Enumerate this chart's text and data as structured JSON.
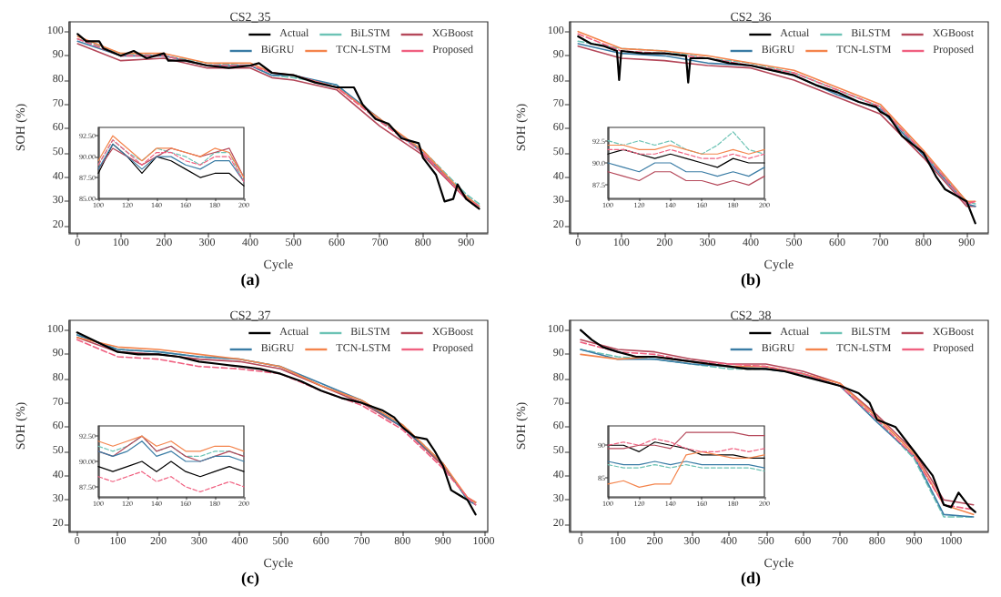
{
  "chart_data": [
    {
      "type": "line",
      "title": "CS2_35",
      "xlabel": "Cycle",
      "ylabel": "SOH (%)",
      "annotations": [
        "(a)"
      ],
      "legend": "top right",
      "xlim": [
        -20,
        950
      ],
      "xticks": [
        0,
        100,
        200,
        300,
        400,
        500,
        600,
        700,
        800,
        900
      ],
      "ylim": [
        17,
        104
      ],
      "yticks": [
        20,
        30,
        40,
        50,
        60,
        70,
        80,
        90,
        100
      ],
      "x": [
        0,
        100,
        200,
        300,
        400,
        450,
        500,
        600,
        700,
        800,
        900,
        930
      ],
      "series": [
        {
          "name": "Actual",
          "color": "#000000",
          "x": [
            0,
            20,
            50,
            60,
            100,
            130,
            160,
            200,
            210,
            250,
            300,
            350,
            400,
            420,
            450,
            500,
            550,
            600,
            640,
            660,
            690,
            720,
            750,
            790,
            800,
            830,
            850,
            870,
            880,
            900,
            930
          ],
          "values": [
            99,
            96,
            96,
            93,
            90,
            92,
            89,
            91,
            88,
            88,
            86,
            85,
            86,
            87,
            83,
            82,
            79,
            77,
            77,
            70,
            64,
            62,
            56,
            54,
            48,
            41,
            30,
            31,
            37,
            31,
            27
          ]
        },
        {
          "name": "BiLSTM",
          "color": "#6cc3b5",
          "line_style": "dashed",
          "values": [
            97,
            91,
            90,
            87,
            86,
            82,
            81,
            78,
            63,
            51,
            33,
            29
          ]
        },
        {
          "name": "XGBoost",
          "color": "#b5485a",
          "values": [
            95,
            88,
            89,
            85,
            85,
            81,
            80,
            76,
            61,
            49,
            31,
            27
          ]
        },
        {
          "name": "BiGRU",
          "color": "#3a7ca5",
          "values": [
            96,
            90,
            90,
            86,
            86,
            82,
            82,
            78,
            64,
            50,
            32,
            28
          ]
        },
        {
          "name": "TCN-LSTM",
          "color": "#f4844c",
          "values": [
            98,
            91,
            91,
            87,
            87,
            83,
            82,
            77,
            64,
            51,
            32,
            28
          ]
        },
        {
          "name": "Proposed",
          "color": "#f06080",
          "line_style": "dashed",
          "values": [
            97,
            90,
            90,
            86,
            86,
            83,
            82,
            77,
            63,
            50,
            31,
            28
          ]
        }
      ]
    },
    {
      "type": "line",
      "xlim": [
        100,
        200
      ],
      "xticks": [
        100,
        120,
        140,
        160,
        180,
        200
      ],
      "ylim": [
        85,
        93.5
      ],
      "yticks": [
        {
          "value": 85,
          "label": "85.00"
        },
        {
          "value": 87.5,
          "label": "87.50"
        },
        {
          "value": 90,
          "label": "90.00"
        },
        {
          "value": 92.5,
          "label": "92.50"
        }
      ],
      "x": [
        100,
        110,
        120,
        130,
        140,
        150,
        160,
        170,
        180,
        190,
        200
      ],
      "series": [
        {
          "color": "#000000",
          "values": [
            88,
            91.5,
            90,
            88,
            90,
            89.5,
            88.5,
            87.5,
            88,
            88,
            86.5
          ]
        },
        {
          "color": "#6cc3b5",
          "line_style": "dashed",
          "values": [
            89,
            92,
            90.5,
            89.5,
            91,
            90.5,
            90,
            89,
            90.5,
            90.5,
            87
          ]
        },
        {
          "color": "#b5485a",
          "values": [
            88.5,
            91,
            90,
            89,
            90,
            91,
            90.5,
            90,
            90.5,
            91,
            87.5
          ]
        },
        {
          "color": "#3a7ca5",
          "values": [
            88.5,
            91.5,
            90,
            88.5,
            90,
            90,
            89,
            88.5,
            89.5,
            89.5,
            87
          ]
        },
        {
          "color": "#f4844c",
          "values": [
            89.5,
            92.5,
            91,
            89.5,
            91,
            91,
            90.5,
            90,
            91,
            90.5,
            87.5
          ]
        },
        {
          "color": "#f06080",
          "line_style": "dashed",
          "values": [
            89,
            92,
            90.5,
            89,
            90.5,
            90.5,
            89.5,
            89,
            90,
            90,
            87
          ]
        }
      ]
    },
    {
      "type": "line",
      "title": "CS2_36",
      "xlabel": "Cycle",
      "ylabel": "SOH (%)",
      "annotations": [
        "(b)"
      ],
      "legend": "top right",
      "xlim": [
        -20,
        950
      ],
      "xticks": [
        0,
        100,
        200,
        300,
        400,
        500,
        600,
        700,
        800,
        900
      ],
      "ylim": [
        17,
        104
      ],
      "yticks": [
        20,
        30,
        40,
        50,
        60,
        70,
        80,
        90,
        100
      ],
      "x": [
        0,
        100,
        200,
        300,
        400,
        500,
        600,
        700,
        800,
        900,
        920
      ],
      "series": [
        {
          "name": "Actual",
          "color": "#000000",
          "x": [
            0,
            30,
            60,
            90,
            95,
            100,
            150,
            200,
            250,
            255,
            260,
            300,
            350,
            400,
            450,
            500,
            550,
            600,
            650,
            690,
            700,
            720,
            750,
            800,
            830,
            850,
            880,
            900,
            920
          ],
          "values": [
            98,
            95,
            94,
            92,
            80,
            92,
            91,
            91,
            90,
            79,
            89,
            89,
            87,
            86,
            84,
            82,
            78,
            75,
            71,
            69,
            67,
            65,
            57,
            50,
            40,
            35,
            32,
            30,
            21
          ]
        },
        {
          "name": "BiLSTM",
          "color": "#6cc3b5",
          "line_style": "dashed",
          "values": [
            96,
            93,
            92,
            89,
            87,
            83,
            76,
            69,
            50,
            30,
            29
          ]
        },
        {
          "name": "XGBoost",
          "color": "#b5485a",
          "values": [
            94,
            89,
            88,
            86,
            85,
            80,
            73,
            66,
            48,
            28,
            28
          ]
        },
        {
          "name": "BiGRU",
          "color": "#3a7ca5",
          "values": [
            95,
            91,
            90,
            87,
            86,
            82,
            74,
            68,
            49,
            29,
            28
          ]
        },
        {
          "name": "TCN-LSTM",
          "color": "#f4844c",
          "values": [
            100,
            93,
            92,
            90,
            87,
            84,
            77,
            70,
            51,
            30,
            30
          ]
        },
        {
          "name": "Proposed",
          "color": "#f06080",
          "line_style": "dashed",
          "values": [
            99,
            92,
            91,
            89,
            86,
            83,
            76,
            69,
            50,
            29,
            30
          ]
        }
      ]
    },
    {
      "type": "line",
      "xlim": [
        100,
        200
      ],
      "xticks": [
        100,
        120,
        140,
        160,
        180,
        200
      ],
      "ylim": [
        86,
        94
      ],
      "yticks": [
        {
          "value": 87.5,
          "label": "87.5"
        },
        {
          "value": 90,
          "label": "90.0"
        },
        {
          "value": 92.5,
          "label": "92.5"
        }
      ],
      "x": [
        100,
        110,
        120,
        130,
        140,
        150,
        160,
        170,
        180,
        190,
        200
      ],
      "series": [
        {
          "color": "#000000",
          "values": [
            91,
            91.5,
            91,
            90.5,
            91,
            90.5,
            90,
            89.5,
            90.5,
            90,
            90
          ]
        },
        {
          "color": "#6cc3b5",
          "line_style": "dashed",
          "values": [
            92.5,
            92,
            92.5,
            92,
            92.5,
            91.5,
            91,
            92,
            93.5,
            91.5,
            91
          ]
        },
        {
          "color": "#b5485a",
          "values": [
            89,
            88.5,
            88,
            89,
            89,
            88,
            88,
            87.5,
            88,
            87.5,
            88.5
          ]
        },
        {
          "color": "#3a7ca5",
          "values": [
            90,
            89.5,
            89,
            90,
            90,
            89,
            89,
            88.5,
            89,
            88.5,
            89.5
          ]
        },
        {
          "color": "#f4844c",
          "values": [
            92,
            92,
            91.5,
            91.5,
            92,
            91.5,
            91,
            91,
            91.5,
            91,
            91.5
          ]
        },
        {
          "color": "#f06080",
          "line_style": "dashed",
          "values": [
            91.5,
            91.5,
            91,
            91,
            91.5,
            91,
            90.5,
            90.5,
            91,
            90.5,
            91
          ]
        }
      ]
    },
    {
      "type": "line",
      "title": "CS2_37",
      "xlabel": "Cycle",
      "ylabel": "SOH (%)",
      "annotations": [
        "(c)"
      ],
      "legend": "top right",
      "xlim": [
        -20,
        1010
      ],
      "xticks": [
        0,
        100,
        200,
        300,
        400,
        500,
        600,
        700,
        800,
        900,
        1000
      ],
      "ylim": [
        17,
        104
      ],
      "yticks": [
        20,
        30,
        40,
        50,
        60,
        70,
        80,
        90,
        100
      ],
      "x": [
        0,
        100,
        200,
        300,
        400,
        500,
        600,
        700,
        800,
        900,
        960,
        980
      ],
      "series": [
        {
          "name": "Actual",
          "color": "#000000",
          "x": [
            0,
            50,
            100,
            150,
            200,
            250,
            300,
            350,
            400,
            450,
            500,
            550,
            600,
            650,
            700,
            750,
            780,
            800,
            830,
            860,
            880,
            900,
            920,
            940,
            960,
            980
          ],
          "values": [
            99,
            95,
            91,
            90,
            90,
            89,
            87,
            86,
            85,
            84,
            82,
            79,
            75,
            72,
            70,
            67,
            64,
            60,
            56,
            55,
            50,
            44,
            34,
            32,
            30,
            24
          ]
        },
        {
          "name": "BiLSTM",
          "color": "#6cc3b5",
          "line_style": "dashed",
          "values": [
            98,
            92,
            91,
            89,
            88,
            85,
            77,
            71,
            61,
            45,
            30,
            29
          ]
        },
        {
          "name": "XGBoost",
          "color": "#b5485a",
          "values": [
            97,
            91,
            90,
            88,
            87,
            84,
            77,
            70,
            60,
            44,
            31,
            29
          ]
        },
        {
          "name": "BiGRU",
          "color": "#3a7ca5",
          "values": [
            98,
            92,
            91,
            89,
            88,
            85,
            78,
            71,
            60,
            45,
            30,
            28
          ]
        },
        {
          "name": "TCN-LSTM",
          "color": "#f4844c",
          "values": [
            97,
            93,
            92,
            90,
            88,
            85,
            77,
            71,
            61,
            45,
            31,
            29
          ]
        },
        {
          "name": "Proposed",
          "color": "#f06080",
          "line_style": "dashed",
          "values": [
            96,
            89,
            88,
            85,
            84,
            82,
            75,
            69,
            59,
            43,
            31,
            28
          ]
        }
      ]
    },
    {
      "type": "line",
      "xlim": [
        100,
        200
      ],
      "xticks": [
        100,
        120,
        140,
        160,
        180,
        200
      ],
      "ylim": [
        86.5,
        93.5
      ],
      "yticks": [
        {
          "value": 87.5,
          "label": "87.50"
        },
        {
          "value": 90,
          "label": "90.00"
        },
        {
          "value": 92.5,
          "label": "92.50"
        }
      ],
      "x": [
        100,
        110,
        120,
        130,
        140,
        150,
        160,
        170,
        180,
        190,
        200
      ],
      "series": [
        {
          "color": "#000000",
          "values": [
            89.5,
            89,
            89.5,
            90,
            89,
            90,
            89,
            88.5,
            89,
            89.5,
            89
          ]
        },
        {
          "color": "#6cc3b5",
          "line_style": "dashed",
          "values": [
            91.5,
            91,
            91.5,
            92.5,
            91,
            91.5,
            90.5,
            90.5,
            91,
            91,
            90.5
          ]
        },
        {
          "color": "#b5485a",
          "values": [
            91,
            90.5,
            91.5,
            92.5,
            91,
            91.5,
            90.5,
            90,
            90.5,
            91,
            90.5
          ]
        },
        {
          "color": "#3a7ca5",
          "values": [
            91,
            90.5,
            91,
            92,
            90.5,
            91,
            90,
            90,
            90.5,
            90.5,
            90
          ]
        },
        {
          "color": "#f4844c",
          "values": [
            92,
            91.5,
            92,
            92.5,
            91.5,
            92,
            91,
            91,
            91.5,
            91.5,
            91
          ]
        },
        {
          "color": "#f06080",
          "line_style": "dashed",
          "values": [
            88.5,
            88,
            88.5,
            89,
            88,
            88.5,
            87.5,
            87,
            87.5,
            88,
            87.5
          ]
        }
      ]
    },
    {
      "type": "line",
      "title": "CS2_38",
      "xlabel": "Cycle",
      "ylabel": "SOH (%)",
      "annotations": [
        "(d)"
      ],
      "legend": "top right",
      "xlim": [
        -30,
        1100
      ],
      "xticks": [
        0,
        100,
        200,
        300,
        400,
        500,
        600,
        700,
        800,
        900,
        1000
      ],
      "ylim": [
        17,
        104
      ],
      "yticks": [
        20,
        30,
        40,
        50,
        60,
        70,
        80,
        90,
        100
      ],
      "x": [
        0,
        100,
        200,
        300,
        400,
        500,
        600,
        700,
        800,
        900,
        980,
        1060
      ],
      "series": [
        {
          "name": "Actual",
          "color": "#000000",
          "x": [
            0,
            30,
            60,
            100,
            150,
            200,
            250,
            300,
            350,
            400,
            450,
            500,
            550,
            600,
            650,
            700,
            750,
            780,
            800,
            850,
            900,
            950,
            980,
            1000,
            1020,
            1050,
            1065
          ],
          "values": [
            100,
            96,
            93,
            91,
            89,
            89,
            88,
            87,
            86,
            85,
            84,
            84,
            83,
            81,
            79,
            77,
            74,
            70,
            63,
            60,
            50,
            40,
            28,
            27,
            33,
            27,
            25
          ]
        },
        {
          "name": "BiLSTM",
          "color": "#6cc3b5",
          "line_style": "dashed",
          "values": [
            92,
            89,
            88,
            86,
            84,
            84,
            82,
            77,
            63,
            47,
            23,
            23
          ]
        },
        {
          "name": "XGBoost",
          "color": "#b5485a",
          "values": [
            96,
            92,
            91,
            88,
            86,
            86,
            83,
            78,
            65,
            50,
            30,
            28
          ]
        },
        {
          "name": "BiGRU",
          "color": "#3a7ca5",
          "values": [
            92,
            88,
            88,
            86,
            85,
            84,
            82,
            77,
            62,
            48,
            24,
            23
          ]
        },
        {
          "name": "TCN-LSTM",
          "color": "#f4844c",
          "values": [
            90,
            88,
            89,
            87,
            85,
            85,
            82,
            78,
            64,
            49,
            28,
            24
          ]
        },
        {
          "name": "Proposed",
          "color": "#f06080",
          "line_style": "dashed",
          "values": [
            95,
            91,
            90,
            87,
            86,
            85,
            82,
            77,
            63,
            48,
            28,
            26
          ]
        }
      ]
    },
    {
      "type": "line",
      "xlim": [
        100,
        200
      ],
      "xticks": [
        100,
        120,
        140,
        160,
        180,
        200
      ],
      "ylim": [
        82,
        93
      ],
      "yticks": [
        85,
        90
      ],
      "x": [
        100,
        110,
        120,
        130,
        140,
        150,
        160,
        170,
        180,
        190,
        200
      ],
      "series": [
        {
          "color": "#000000",
          "values": [
            90,
            90,
            89,
            90.5,
            90,
            89.5,
            88.5,
            88.5,
            88.5,
            88,
            88
          ]
        },
        {
          "color": "#6cc3b5",
          "line_style": "dashed",
          "values": [
            87,
            86.5,
            86.5,
            87,
            86.5,
            87,
            86.5,
            86.5,
            86.5,
            86.5,
            86
          ]
        },
        {
          "color": "#b5485a",
          "values": [
            89.5,
            89.5,
            90,
            90,
            89.5,
            92,
            92,
            92,
            92,
            91.5,
            91.5
          ]
        },
        {
          "color": "#3a7ca5",
          "values": [
            87.5,
            87,
            87,
            87.5,
            87,
            87.5,
            87,
            87,
            87,
            87,
            86.5
          ]
        },
        {
          "color": "#f4844c",
          "values": [
            84,
            84.5,
            83.5,
            84,
            84,
            88.5,
            89,
            88.5,
            88,
            88,
            88.5
          ]
        },
        {
          "color": "#f06080",
          "line_style": "dashed",
          "values": [
            90,
            90.5,
            90,
            91,
            90.5,
            89.5,
            89,
            89,
            89.5,
            89,
            89.5
          ]
        }
      ]
    }
  ]
}
